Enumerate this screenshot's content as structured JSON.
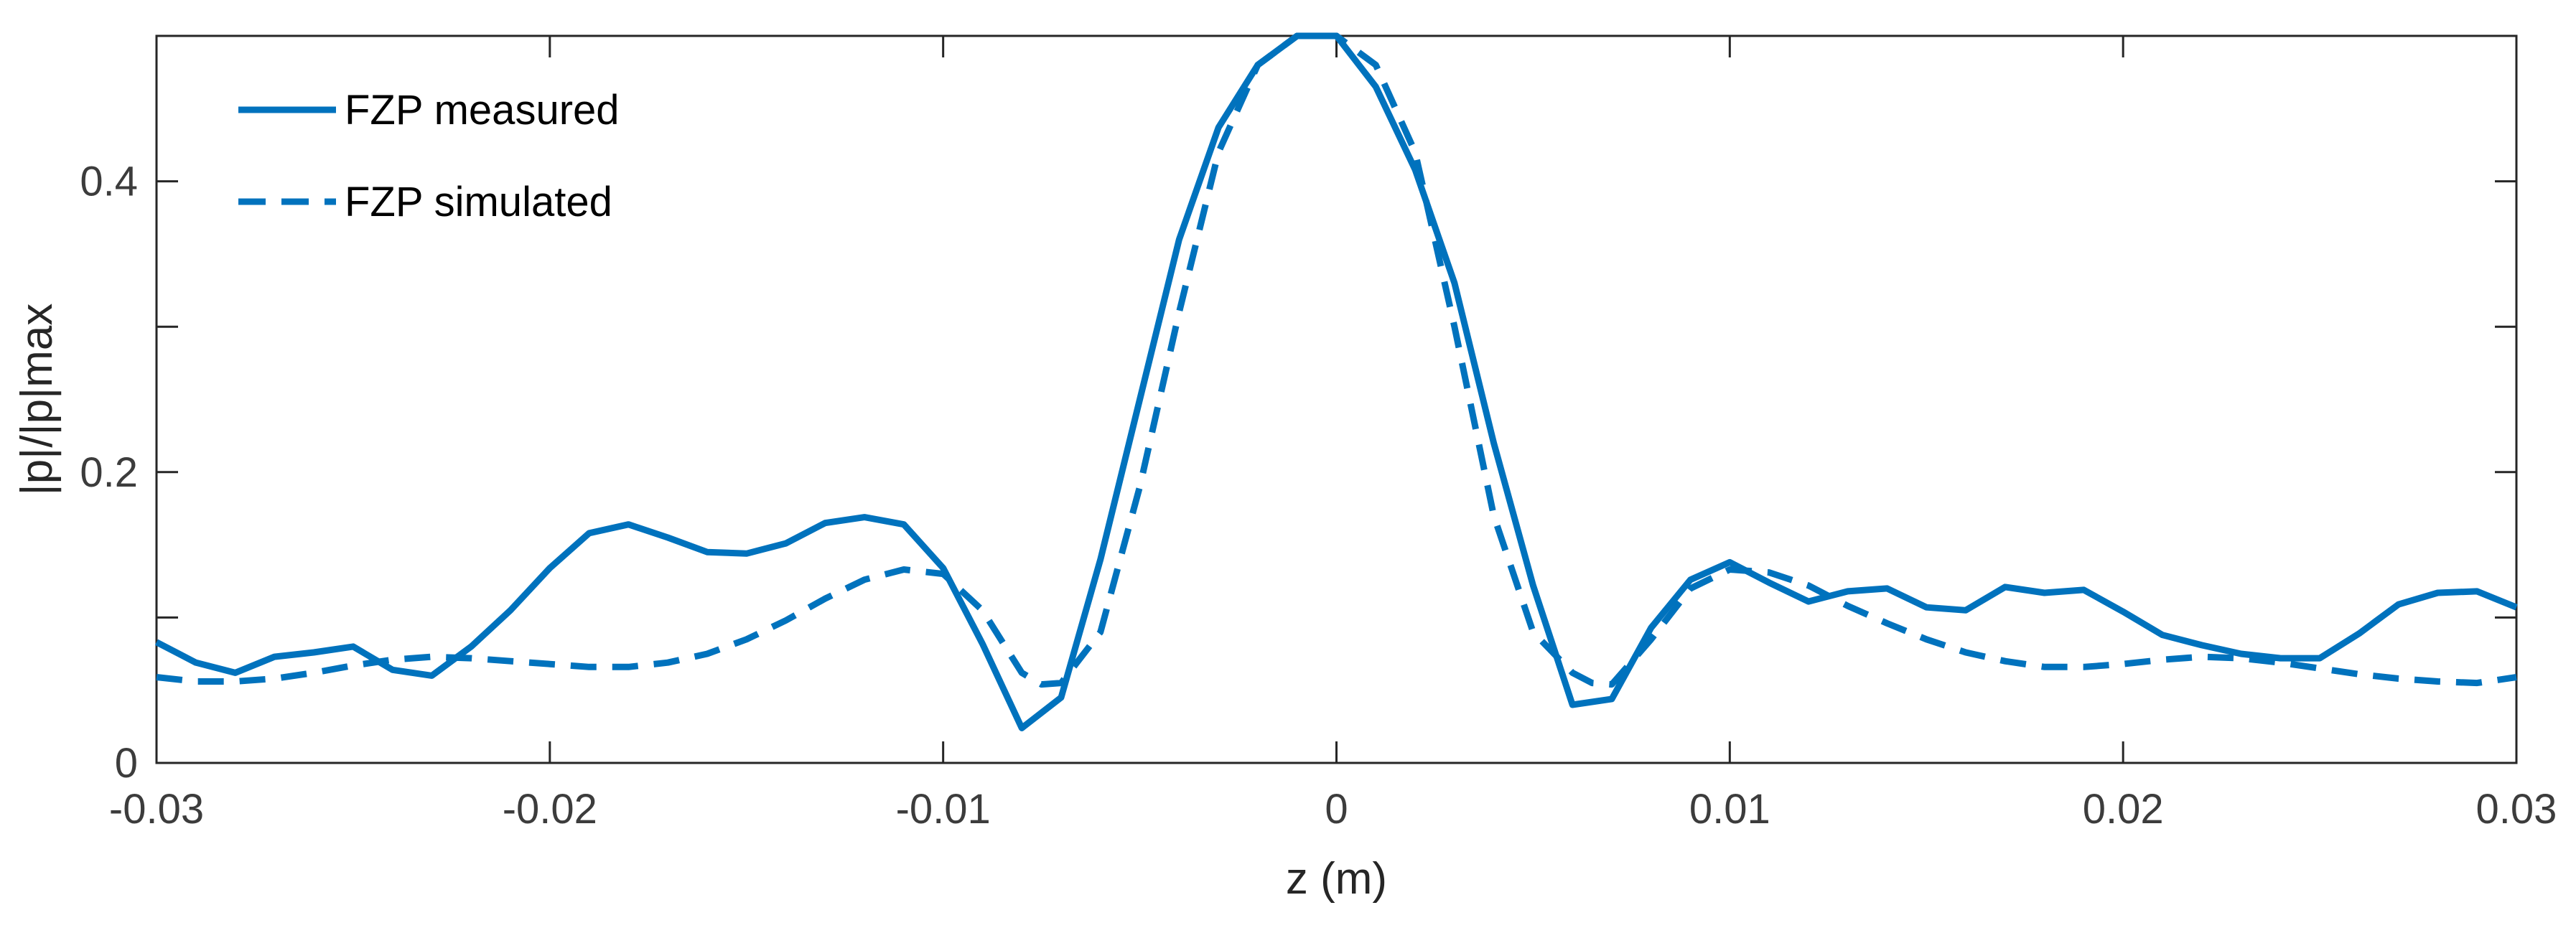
{
  "chart_data": {
    "type": "line",
    "title": "",
    "xlabel": "z (m)",
    "ylabel": "|p|/|p|max",
    "xlim": [
      -0.03,
      0.03
    ],
    "ylim": [
      0,
      0.5
    ],
    "xticks": [
      -0.03,
      -0.02,
      -0.01,
      0,
      0.01,
      0.02,
      0.03
    ],
    "xtick_labels": [
      "-0.03",
      "-0.02",
      "-0.01",
      "0",
      "0.01",
      "0.02",
      "0.03"
    ],
    "yticks": [
      0,
      0.1,
      0.2,
      0.3,
      0.4
    ],
    "ytick_labels": [
      "0",
      "",
      "0.2",
      "",
      "0.4"
    ],
    "grid": false,
    "box": true,
    "legend_position": "top-left",
    "series": [
      {
        "name": "FZP measured",
        "style": "solid",
        "color": "#0072BD",
        "x": [
          -0.03,
          -0.029,
          -0.028,
          -0.027,
          -0.026,
          -0.025,
          -0.024,
          -0.023,
          -0.022,
          -0.021,
          -0.02,
          -0.019,
          -0.018,
          -0.017,
          -0.016,
          -0.015,
          -0.014,
          -0.013,
          -0.012,
          -0.011,
          -0.01,
          -0.009,
          -0.008,
          -0.007,
          -0.006,
          -0.005,
          -0.004,
          -0.003,
          -0.002,
          -0.001,
          0,
          0.001,
          0.002,
          0.003,
          0.004,
          0.005,
          0.006,
          0.007,
          0.008,
          0.009,
          0.01,
          0.011,
          0.012,
          0.013,
          0.014,
          0.015,
          0.016,
          0.017,
          0.018,
          0.019,
          0.02,
          0.021,
          0.022,
          0.023,
          0.024,
          0.025,
          0.026,
          0.027,
          0.028,
          0.029,
          0.03
        ],
        "y": [
          0.083,
          0.069,
          0.062,
          0.073,
          0.076,
          0.08,
          0.064,
          0.06,
          0.08,
          0.105,
          0.134,
          0.158,
          0.164,
          0.155,
          0.145,
          0.144,
          0.151,
          0.165,
          0.169,
          0.164,
          0.134,
          0.082,
          0.024,
          0.045,
          0.14,
          0.25,
          0.36,
          0.437,
          0.48,
          0.5,
          0.5,
          0.465,
          0.408,
          0.33,
          0.22,
          0.122,
          0.04,
          0.044,
          0.093,
          0.126,
          0.138,
          0.124,
          0.111,
          0.118,
          0.12,
          0.107,
          0.105,
          0.121,
          0.117,
          0.119,
          0.104,
          0.088,
          0.081,
          0.075,
          0.072,
          0.072,
          0.089,
          0.109,
          0.117,
          0.118,
          0.107
        ]
      },
      {
        "name": "FZP simulated",
        "style": "dashed",
        "color": "#0072BD",
        "x": [
          -0.03,
          -0.029,
          -0.028,
          -0.027,
          -0.026,
          -0.025,
          -0.024,
          -0.023,
          -0.022,
          -0.021,
          -0.02,
          -0.019,
          -0.018,
          -0.017,
          -0.016,
          -0.015,
          -0.014,
          -0.013,
          -0.012,
          -0.011,
          -0.01,
          -0.009,
          -0.008,
          -0.0075,
          -0.007,
          -0.006,
          -0.005,
          -0.004,
          -0.003,
          -0.002,
          -0.001,
          0,
          0.001,
          0.002,
          0.003,
          0.004,
          0.005,
          0.006,
          0.0065,
          0.007,
          0.008,
          0.009,
          0.01,
          0.011,
          0.012,
          0.013,
          0.014,
          0.015,
          0.016,
          0.017,
          0.018,
          0.019,
          0.02,
          0.021,
          0.022,
          0.023,
          0.024,
          0.025,
          0.026,
          0.027,
          0.028,
          0.029,
          0.03
        ],
        "y": [
          0.059,
          0.056,
          0.056,
          0.058,
          0.062,
          0.067,
          0.071,
          0.073,
          0.072,
          0.07,
          0.068,
          0.066,
          0.066,
          0.069,
          0.075,
          0.085,
          0.098,
          0.113,
          0.126,
          0.133,
          0.13,
          0.105,
          0.062,
          0.054,
          0.055,
          0.09,
          0.19,
          0.31,
          0.42,
          0.48,
          0.5,
          0.5,
          0.48,
          0.42,
          0.3,
          0.17,
          0.09,
          0.062,
          0.055,
          0.054,
          0.085,
          0.12,
          0.133,
          0.131,
          0.122,
          0.108,
          0.096,
          0.085,
          0.076,
          0.07,
          0.066,
          0.066,
          0.068,
          0.071,
          0.073,
          0.072,
          0.069,
          0.065,
          0.061,
          0.058,
          0.056,
          0.055,
          0.059
        ]
      }
    ]
  }
}
